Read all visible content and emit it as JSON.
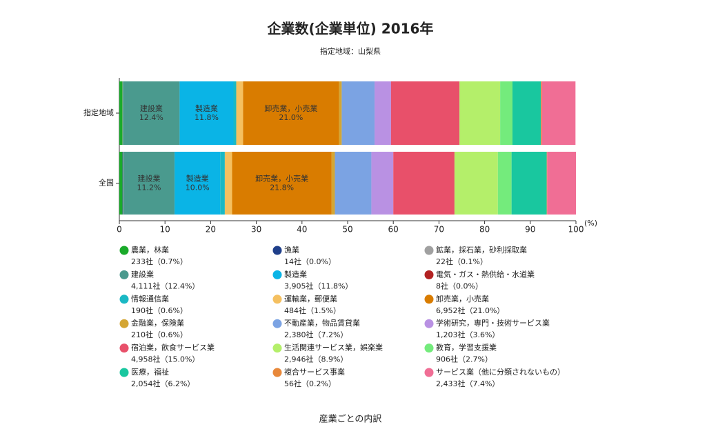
{
  "chart_data": {
    "type": "bar",
    "orientation": "horizontal",
    "stacked": true,
    "title": "企業数(企業単位) 2016年",
    "subtitle": "指定地域：山梨県",
    "x_label": "産業ごとの内訳",
    "x_unit": "(%)",
    "categories": [
      "指定地域",
      "全国"
    ],
    "xlim": [
      0,
      100
    ],
    "xticks": [
      0,
      10,
      20,
      30,
      40,
      50,
      60,
      70,
      80,
      90,
      100
    ],
    "series": [
      {
        "name": "農業，林業",
        "color": "#1aaa2a",
        "values": [
          0.7,
          0.7
        ],
        "legend_label": "233社（0.7%）"
      },
      {
        "name": "漁業",
        "color": "#1f3f8a",
        "values": [
          0.0,
          0.1
        ],
        "legend_label": "14社（0.0%）"
      },
      {
        "name": "鉱業，採石業，砂利採取業",
        "color": "#a0a0a0",
        "values": [
          0.1,
          0.1
        ],
        "legend_label": "22社（0.1%）"
      },
      {
        "name": "建設業",
        "color": "#4a9a8e",
        "values": [
          12.4,
          11.2
        ],
        "value_labels": [
          "12.4%",
          "11.2%"
        ],
        "legend_label": "4,111社（12.4%）"
      },
      {
        "name": "製造業",
        "color": "#0ab4e6",
        "values": [
          11.8,
          10.0
        ],
        "value_labels": [
          "11.8%",
          "10.0%"
        ],
        "legend_label": "3,905社（11.8%）"
      },
      {
        "name": "電気・ガス・熱供給・水道業",
        "color": "#b22222",
        "values": [
          0.0,
          0.0
        ],
        "legend_label": "8社（0.0%）"
      },
      {
        "name": "情報通信業",
        "color": "#1ab8c4",
        "values": [
          0.6,
          1.0
        ],
        "legend_label": "190社（0.6%）"
      },
      {
        "name": "運輸業，郵便業",
        "color": "#f5c060",
        "values": [
          1.5,
          1.6
        ],
        "legend_label": "484社（1.5%）"
      },
      {
        "name": "卸売業，小売業",
        "color": "#d97c00",
        "values": [
          21.0,
          21.8
        ],
        "value_labels": [
          "21.0%",
          "21.8%"
        ],
        "legend_label": "6,952社（21.0%）"
      },
      {
        "name": "金融業，保険業",
        "color": "#d4a634",
        "values": [
          0.6,
          0.7
        ],
        "legend_label": "210社（0.6%）"
      },
      {
        "name": "不動産業，物品賃貸業",
        "color": "#7ba3e3",
        "values": [
          7.2,
          8.0
        ],
        "legend_label": "2,380社（7.2%）"
      },
      {
        "name": "学術研究，専門・技術サービス業",
        "color": "#b991e3",
        "values": [
          3.6,
          4.8
        ],
        "legend_label": "1,203社（3.6%）"
      },
      {
        "name": "宿泊業，飲食サービス業",
        "color": "#e8506a",
        "values": [
          15.0,
          13.4
        ],
        "legend_label": "4,958社（15.0%）"
      },
      {
        "name": "生活関連サービス業，娯楽業",
        "color": "#b4ef6a",
        "values": [
          8.9,
          9.5
        ],
        "legend_label": "2,946社（8.9%）"
      },
      {
        "name": "教育，学習支援業",
        "color": "#74eb7c",
        "values": [
          2.7,
          3.0
        ],
        "legend_label": "906社（2.7%）"
      },
      {
        "name": "医療，福祉",
        "color": "#19c79f",
        "values": [
          6.2,
          7.7
        ],
        "legend_label": "2,054社（6.2%）"
      },
      {
        "name": "複合サービス事業",
        "color": "#e8883a",
        "values": [
          0.2,
          0.1
        ],
        "legend_label": "56社（0.2%）"
      },
      {
        "name": "サービス業（他に分類されないもの）",
        "color": "#f06e95",
        "values": [
          7.4,
          6.3
        ],
        "legend_label": "2,433社（7.4%）"
      }
    ]
  }
}
